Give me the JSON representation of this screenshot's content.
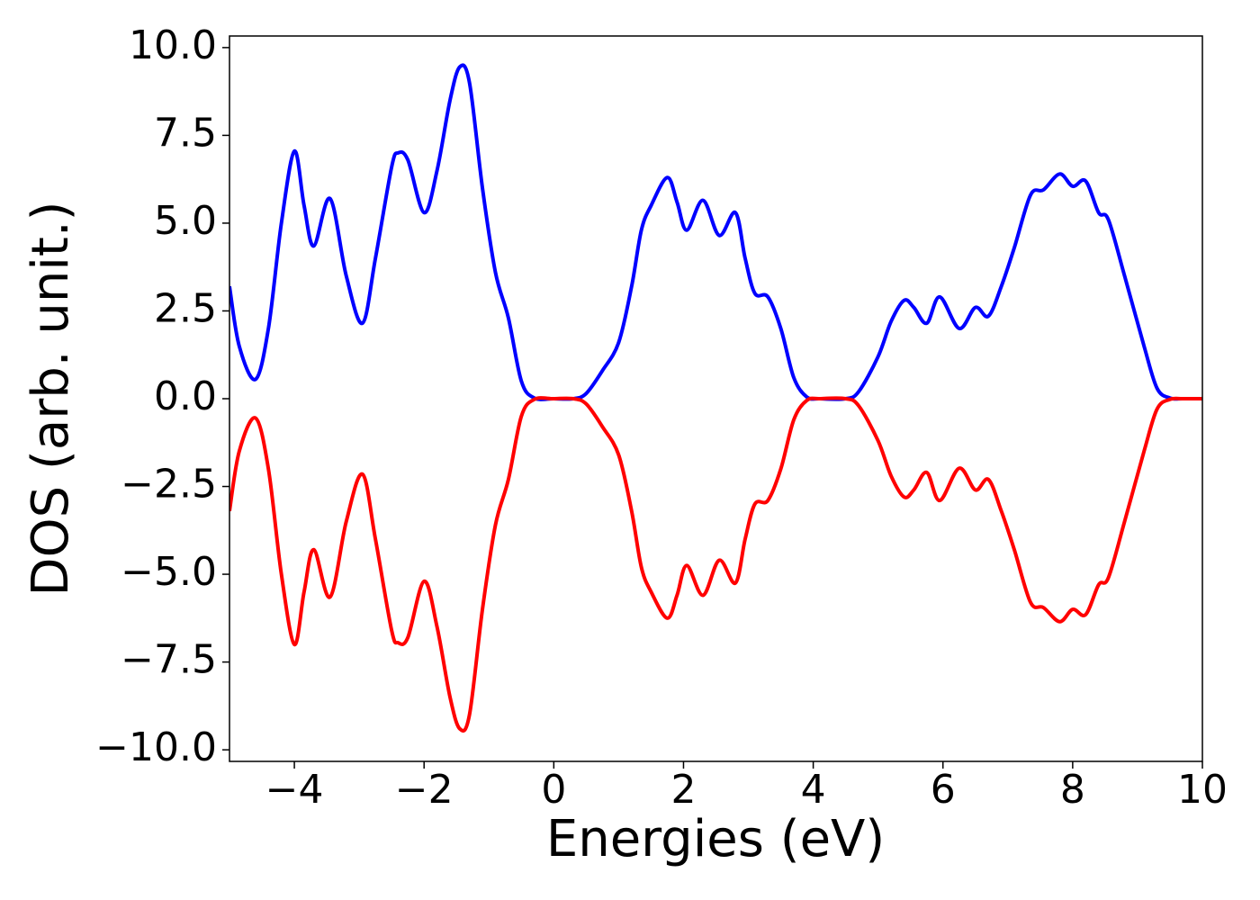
{
  "chart_data": {
    "type": "line",
    "xlabel": "Energies (eV)",
    "ylabel": "DOS (arb. unit.)",
    "x": [
      -5,
      -4.85,
      -4.6,
      -4.4,
      -4.2,
      -4.0,
      -3.85,
      -3.7,
      -3.45,
      -3.2,
      -2.95,
      -2.75,
      -2.5,
      -2.4,
      -2.25,
      -2.0,
      -1.8,
      -1.6,
      -1.45,
      -1.3,
      -1.1,
      -0.9,
      -0.7,
      -0.5,
      -0.3,
      0,
      0.3,
      0.5,
      0.75,
      1.0,
      1.2,
      1.35,
      1.5,
      1.75,
      1.9,
      2.05,
      2.3,
      2.55,
      2.8,
      2.95,
      3.1,
      3.3,
      3.5,
      3.7,
      3.9,
      4.1,
      4.5,
      4.7,
      5.0,
      5.2,
      5.4,
      5.55,
      5.75,
      5.95,
      6.25,
      6.5,
      6.7,
      6.9,
      7.1,
      7.35,
      7.55,
      7.8,
      8.0,
      8.2,
      8.4,
      8.55,
      8.8,
      9.1,
      9.3,
      9.5,
      9.7,
      10
    ],
    "series": [
      {
        "color": "#0000ff",
        "values": [
          3.2,
          1.5,
          0.55,
          2,
          5,
          7.05,
          5.5,
          4.35,
          5.7,
          3.5,
          2.15,
          4,
          6.6,
          7.0,
          6.8,
          5.3,
          6.5,
          8.5,
          9.45,
          9.0,
          6,
          3.6,
          2.3,
          0.5,
          0.02,
          0,
          0,
          0.15,
          0.8,
          1.6,
          3.2,
          4.8,
          5.5,
          6.3,
          5.6,
          4.8,
          5.65,
          4.65,
          5.3,
          4.0,
          3.0,
          2.9,
          2.0,
          0.6,
          0.05,
          0,
          0,
          0.2,
          1.2,
          2.2,
          2.8,
          2.6,
          2.15,
          2.9,
          2.0,
          2.6,
          2.35,
          3.2,
          4.3,
          5.8,
          5.95,
          6.4,
          6.05,
          6.2,
          5.3,
          5.1,
          3.5,
          1.5,
          0.3,
          0.02,
          0,
          0
        ]
      },
      {
        "color": "#ff0000",
        "values": [
          -3.2,
          -1.5,
          -0.55,
          -2,
          -5,
          -7.0,
          -5.5,
          -4.3,
          -5.65,
          -3.5,
          -2.15,
          -4,
          -6.6,
          -6.95,
          -6.8,
          -5.2,
          -6.5,
          -8.5,
          -9.4,
          -9.0,
          -6,
          -3.6,
          -2.3,
          -0.5,
          -0.02,
          0,
          0,
          -0.15,
          -0.8,
          -1.6,
          -3.2,
          -4.8,
          -5.5,
          -6.25,
          -5.6,
          -4.75,
          -5.6,
          -4.6,
          -5.25,
          -4.0,
          -3.0,
          -2.9,
          -2.0,
          -0.6,
          -0.05,
          0,
          0,
          -0.2,
          -1.2,
          -2.2,
          -2.8,
          -2.6,
          -2.1,
          -2.9,
          -1.98,
          -2.6,
          -2.3,
          -3.2,
          -4.3,
          -5.8,
          -5.95,
          -6.35,
          -6.0,
          -6.15,
          -5.3,
          -5.1,
          -3.5,
          -1.5,
          -0.3,
          -0.02,
          0,
          0
        ]
      }
    ],
    "xlim": [
      -5,
      10
    ],
    "xticks": [
      {
        "value": -4,
        "label": "−4"
      },
      {
        "value": -2,
        "label": "−2"
      },
      0,
      2,
      4,
      6,
      8,
      10
    ],
    "ylim": [
      -10.33,
      10.33
    ],
    "yticks": [
      {
        "value": 10,
        "label": "10.0"
      },
      7.5,
      {
        "value": 5,
        "label": "5.0"
      },
      2.5,
      {
        "value": 0,
        "label": "0.0"
      },
      {
        "value": -2.5,
        "label": "−2.5"
      },
      {
        "value": -5,
        "label": "−5.0"
      },
      {
        "value": -7.5,
        "label": "−7.5"
      },
      {
        "value": -10,
        "label": "−10.0"
      }
    ],
    "grid": false
  }
}
